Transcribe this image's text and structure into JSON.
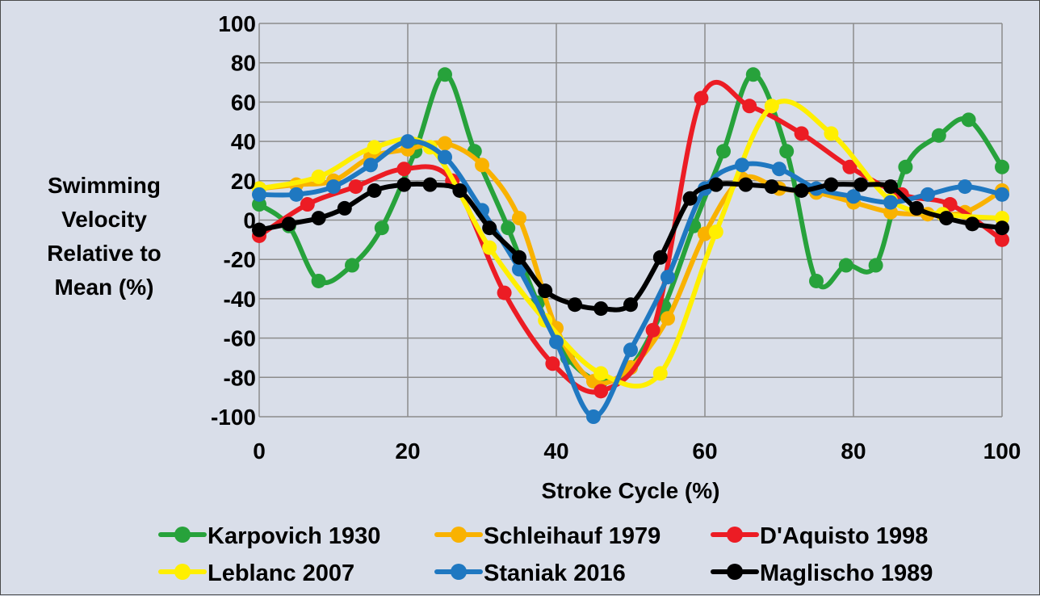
{
  "chart_data": {
    "type": "line",
    "title": "",
    "xlabel": "Stroke Cycle (%)",
    "ylabel": "Swimming Velocity Relative to Mean (%)",
    "ylabel_lines": [
      "Swimming",
      "Velocity",
      "Relative to",
      "Mean (%)"
    ],
    "xlim": [
      0,
      100
    ],
    "ylim": [
      -100,
      100
    ],
    "xticks": [
      0,
      20,
      40,
      60,
      80,
      100
    ],
    "yticks": [
      -100,
      -80,
      -60,
      -40,
      -20,
      0,
      20,
      40,
      60,
      80,
      100
    ],
    "grid": true,
    "smooth": true,
    "legend_position": "bottom",
    "series": [
      {
        "name": "Karpovich 1930",
        "color": "#27a23b",
        "x": [
          0,
          4,
          8,
          12.5,
          16.5,
          21,
          25,
          29,
          33.5,
          37.5,
          41.5,
          46,
          50,
          54.5,
          58.5,
          62.5,
          66.5,
          71,
          75,
          79,
          83,
          87,
          91.5,
          95.5,
          100
        ],
        "y": [
          8,
          -3,
          -31,
          -23,
          -4,
          35,
          74,
          35,
          -4,
          -42,
          -70,
          -82,
          -75,
          -44,
          -3,
          35,
          74,
          35,
          -31,
          -23,
          -23,
          27,
          43,
          51,
          27
        ]
      },
      {
        "name": "Schleihauf 1979",
        "color": "#f9b200",
        "x": [
          0,
          5,
          10,
          15,
          20,
          25,
          30,
          35,
          40,
          45,
          50,
          55,
          60,
          65,
          70,
          75,
          80,
          85,
          90,
          95,
          100
        ],
        "y": [
          16,
          18,
          20,
          32,
          36,
          39,
          28,
          1,
          -55,
          -82,
          -75,
          -50,
          -7,
          21,
          16,
          14,
          9,
          4,
          3,
          4,
          15
        ]
      },
      {
        "name": "D'Aquisto 1998",
        "color": "#ec1c24",
        "x": [
          0,
          6.5,
          13,
          19.5,
          26,
          33,
          39.5,
          46,
          53,
          59.5,
          66,
          73,
          79.5,
          86.5,
          93,
          100
        ],
        "y": [
          -8,
          8,
          17,
          26,
          20,
          -37,
          -73,
          -87,
          -56,
          62,
          58,
          44,
          27,
          13,
          8,
          -10
        ]
      },
      {
        "name": "Leblanc 2007",
        "color": "#ffef00",
        "x": [
          0,
          8,
          15.5,
          23,
          31,
          38.5,
          46,
          54,
          61.5,
          69,
          77,
          85,
          92,
          100
        ],
        "y": [
          16,
          22,
          37,
          37,
          -14,
          -51,
          -78,
          -78,
          -6,
          58,
          44,
          10,
          3,
          1
        ]
      },
      {
        "name": "Staniak 2016",
        "color": "#1f78c1",
        "x": [
          0,
          5,
          10,
          15,
          20,
          25,
          30,
          35,
          40,
          45,
          50,
          55,
          60,
          65,
          70,
          75,
          80,
          85,
          90,
          95,
          100
        ],
        "y": [
          13,
          13,
          17,
          28,
          40,
          32,
          5,
          -25,
          -62,
          -100,
          -66,
          -29,
          16,
          28,
          26,
          16,
          12,
          9,
          13,
          17,
          13
        ]
      },
      {
        "name": "Maglischo 1989",
        "color": "#000000",
        "x": [
          0,
          4,
          8,
          11.5,
          15.5,
          19.5,
          23,
          27,
          31,
          35,
          38.5,
          42.5,
          46,
          50,
          54,
          58,
          61.5,
          65.5,
          69,
          73,
          77,
          81,
          85,
          88.5,
          92.5,
          96,
          100
        ],
        "y": [
          -5,
          -2,
          1,
          6,
          15,
          18,
          18,
          15,
          -4,
          -19,
          -36,
          -43,
          -45,
          -43,
          -19,
          11,
          18,
          18,
          17,
          15,
          18,
          18,
          17,
          6,
          1,
          -2,
          -4
        ]
      }
    ]
  }
}
